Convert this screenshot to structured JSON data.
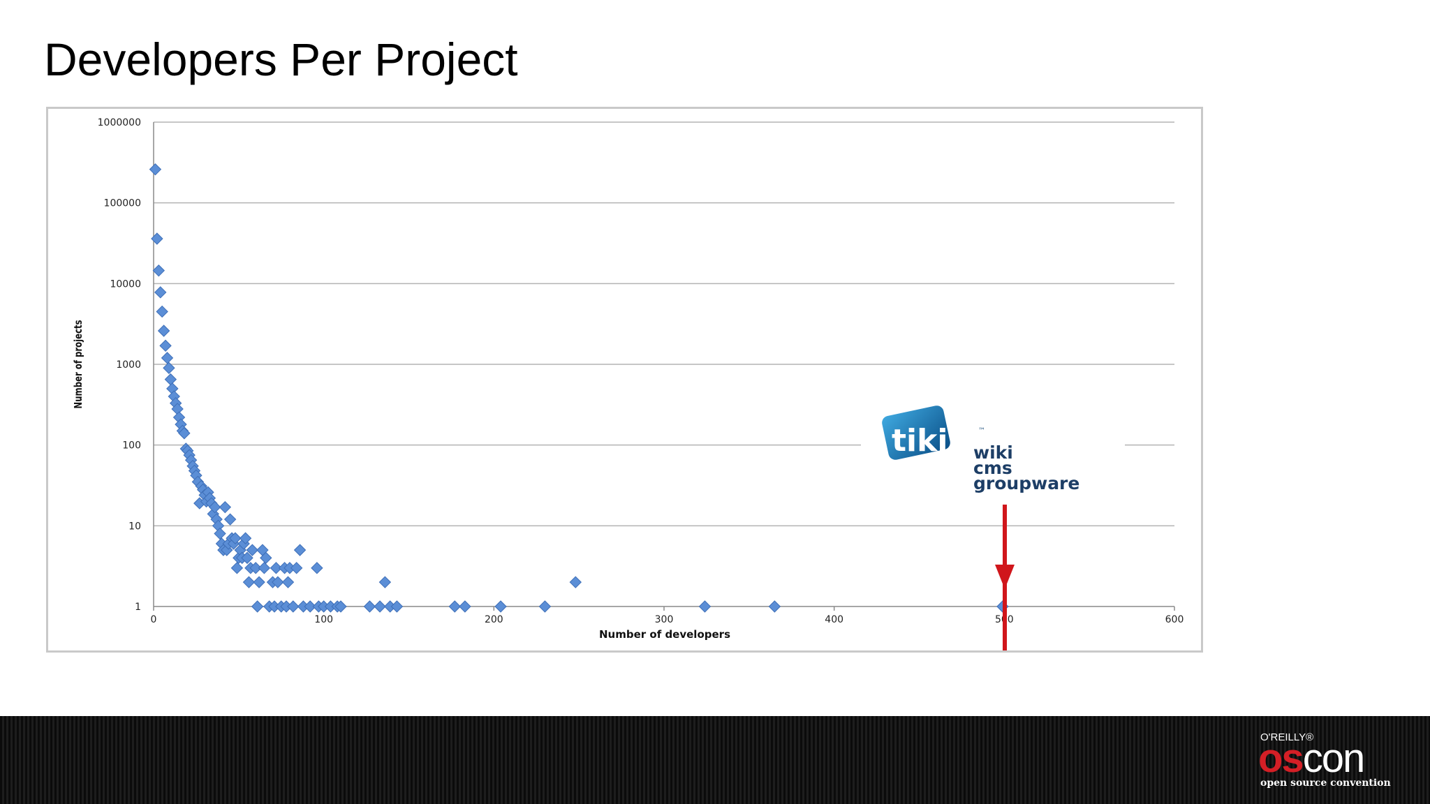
{
  "slide": {
    "title": "Developers Per Project"
  },
  "chart_data": {
    "type": "scatter",
    "title": "",
    "xlabel": "Number of developers",
    "ylabel": "Number of projects",
    "xlim": [
      0,
      600
    ],
    "ylim": [
      1,
      1000000
    ],
    "yscale": "log",
    "grid": true,
    "x_ticks": [
      "0",
      "100",
      "200",
      "300",
      "400",
      "500",
      "600"
    ],
    "y_ticks": [
      "1",
      "10",
      "100",
      "1000",
      "10000",
      "100000",
      "1000000"
    ],
    "marker_color": "#5b8ed6",
    "points": [
      [
        1,
        260000
      ],
      [
        2,
        36000
      ],
      [
        3,
        14500
      ],
      [
        4,
        7800
      ],
      [
        5,
        4500
      ],
      [
        6,
        2600
      ],
      [
        7,
        1700
      ],
      [
        8,
        1200
      ],
      [
        9,
        900
      ],
      [
        10,
        650
      ],
      [
        11,
        500
      ],
      [
        12,
        400
      ],
      [
        13,
        330
      ],
      [
        14,
        280
      ],
      [
        15,
        220
      ],
      [
        16,
        180
      ],
      [
        17,
        150
      ],
      [
        18,
        140
      ],
      [
        19,
        90
      ],
      [
        20,
        85
      ],
      [
        21,
        75
      ],
      [
        22,
        65
      ],
      [
        23,
        55
      ],
      [
        24,
        48
      ],
      [
        25,
        42
      ],
      [
        26,
        35
      ],
      [
        27,
        19
      ],
      [
        28,
        31
      ],
      [
        29,
        28
      ],
      [
        30,
        24
      ],
      [
        31,
        20
      ],
      [
        32,
        26
      ],
      [
        33,
        22
      ],
      [
        34,
        19
      ],
      [
        35,
        14
      ],
      [
        36,
        17
      ],
      [
        37,
        12
      ],
      [
        38,
        10
      ],
      [
        39,
        8
      ],
      [
        40,
        6
      ],
      [
        41,
        5
      ],
      [
        42,
        17
      ],
      [
        43,
        5
      ],
      [
        44,
        6
      ],
      [
        45,
        12
      ],
      [
        46,
        7
      ],
      [
        47,
        6
      ],
      [
        48,
        7
      ],
      [
        49,
        3
      ],
      [
        50,
        4
      ],
      [
        51,
        5
      ],
      [
        52,
        4
      ],
      [
        53,
        6
      ],
      [
        54,
        7
      ],
      [
        55,
        4
      ],
      [
        56,
        2
      ],
      [
        57,
        3
      ],
      [
        58,
        5
      ],
      [
        60,
        3
      ],
      [
        61,
        1
      ],
      [
        62,
        2
      ],
      [
        64,
        5
      ],
      [
        65,
        3
      ],
      [
        66,
        4
      ],
      [
        68,
        1
      ],
      [
        70,
        2
      ],
      [
        71,
        1
      ],
      [
        72,
        3
      ],
      [
        73,
        2
      ],
      [
        75,
        1
      ],
      [
        77,
        3
      ],
      [
        78,
        1
      ],
      [
        79,
        2
      ],
      [
        80,
        3
      ],
      [
        82,
        1
      ],
      [
        84,
        3
      ],
      [
        86,
        5
      ],
      [
        88,
        1
      ],
      [
        92,
        1
      ],
      [
        96,
        3
      ],
      [
        97,
        1
      ],
      [
        100,
        1
      ],
      [
        104,
        1
      ],
      [
        108,
        1
      ],
      [
        110,
        1
      ],
      [
        127,
        1
      ],
      [
        133,
        1
      ],
      [
        136,
        2
      ],
      [
        139,
        1
      ],
      [
        143,
        1
      ],
      [
        177,
        1
      ],
      [
        183,
        1
      ],
      [
        204,
        1
      ],
      [
        230,
        1
      ],
      [
        248,
        2
      ],
      [
        324,
        1
      ],
      [
        365,
        1
      ],
      [
        499,
        1
      ]
    ],
    "annotation": {
      "logo_word": "tiki",
      "trademark": "™",
      "lines": [
        "wiki",
        "cms",
        "groupware"
      ],
      "arrow_color": "#d0161b",
      "points_to_x": 500,
      "points_to_y": 1
    }
  },
  "footer": {
    "publisher": "O'REILLY®",
    "brand_red": "os",
    "brand_white": "con",
    "tagline": "open source convention",
    "brand_color": "#d41f26"
  }
}
